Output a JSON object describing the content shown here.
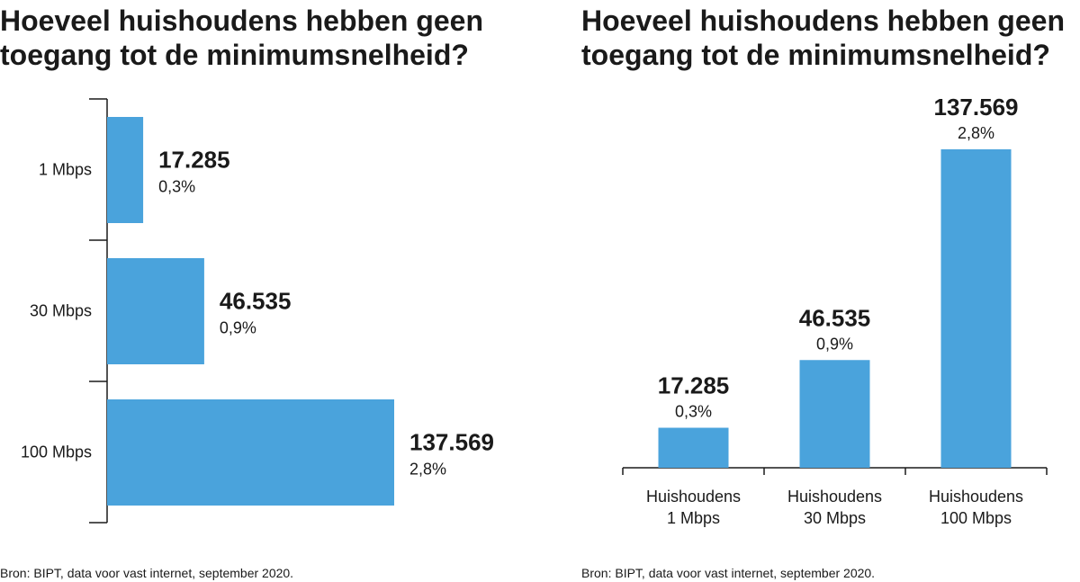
{
  "source_note": "Bron: BIPT, data voor vast internet, september 2020.",
  "chart_data": [
    {
      "type": "bar",
      "orientation": "horizontal",
      "title": "Hoeveel huishoudens hebben geen toegang tot de minimumsnelheid?",
      "title_lines": [
        "Hoeveel huishoudens hebben geen",
        "toegang tot de minimumsnelheid?"
      ],
      "categories": [
        "1 Mbps",
        "30 Mbps",
        "100 Mbps"
      ],
      "values": [
        17285,
        46535,
        137569
      ],
      "value_labels": [
        "17.285",
        "46.535",
        "137.569"
      ],
      "percent_labels": [
        "0,3%",
        "0,9%",
        "2,8%"
      ],
      "color": "#4aa3dc",
      "grid": false
    },
    {
      "type": "bar",
      "orientation": "vertical",
      "title": "Hoeveel huishoudens hebben geen toegang tot de minimumsnelheid?",
      "title_lines": [
        "Hoeveel huishoudens hebben geen",
        "toegang tot de minimumsnelheid?"
      ],
      "categories": [
        "Huishoudens 1 Mbps",
        "Huishoudens 30 Mbps",
        "Huishoudens 100 Mbps"
      ],
      "category_lines": [
        [
          "Huishoudens",
          "1 Mbps"
        ],
        [
          "Huishoudens",
          "30 Mbps"
        ],
        [
          "Huishoudens",
          "100 Mbps"
        ]
      ],
      "values": [
        17285,
        46535,
        137569
      ],
      "value_labels": [
        "17.285",
        "46.535",
        "137.569"
      ],
      "percent_labels": [
        "0,3%",
        "0,9%",
        "2,8%"
      ],
      "color": "#4aa3dc",
      "grid": false
    }
  ]
}
